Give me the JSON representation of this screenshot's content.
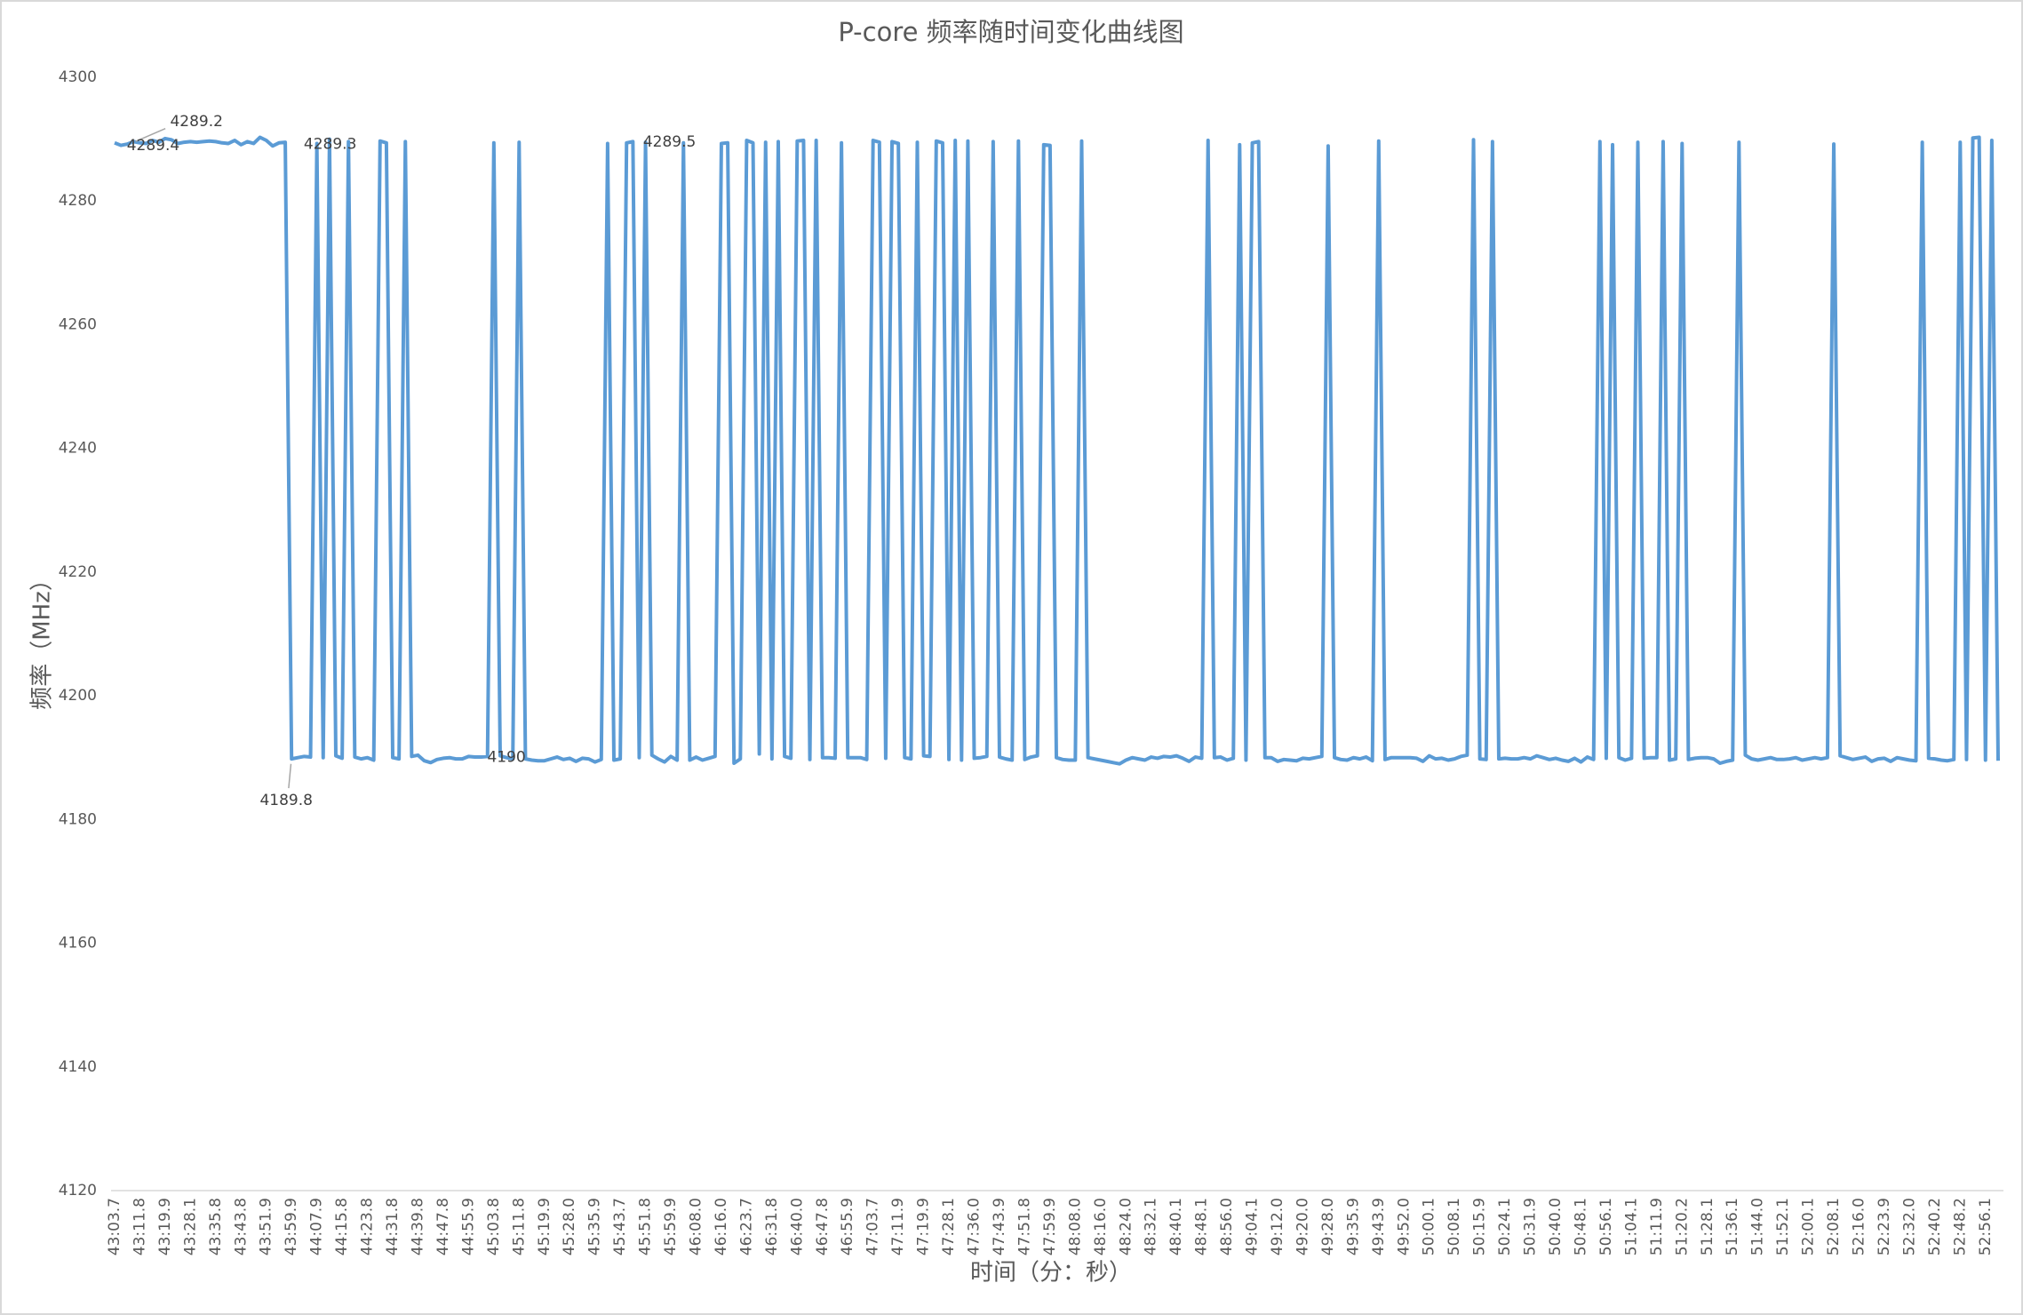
{
  "chart_data": {
    "type": "line",
    "title": "P-core 频率随时间变化曲线图",
    "x_label": "时间（分：秒）",
    "y_label": "频率（MHz）",
    "categories": [
      "43:03.7",
      null,
      null,
      null,
      "43:11.8",
      null,
      null,
      null,
      "43:19.9",
      null,
      null,
      null,
      "43:28.1",
      null,
      null,
      null,
      "43:35.8",
      null,
      null,
      null,
      "43:43.8",
      null,
      null,
      null,
      "43:51.9",
      null,
      null,
      null,
      "43:59.9",
      null,
      null,
      null,
      "44:07.9",
      null,
      null,
      null,
      "44:15.8",
      null,
      null,
      null,
      "44:23.8",
      null,
      null,
      null,
      "44:31.8",
      null,
      null,
      null,
      "44:39.8",
      null,
      null,
      null,
      "44:47.8",
      null,
      null,
      null,
      "44:55.9",
      null,
      null,
      null,
      "45:03.8",
      null,
      null,
      null,
      "45:11.8",
      null,
      null,
      null,
      "45:19.9",
      null,
      null,
      null,
      "45:28.0",
      null,
      null,
      null,
      "45:35.9",
      null,
      null,
      null,
      "45:43.7",
      null,
      null,
      null,
      "45:51.8",
      null,
      null,
      null,
      "45:59.9",
      null,
      null,
      null,
      "46:08.0",
      null,
      null,
      null,
      "46:16.0",
      null,
      null,
      null,
      "46:23.7",
      null,
      null,
      null,
      "46:31.8",
      null,
      null,
      null,
      "46:40.0",
      null,
      null,
      null,
      "46:47.8",
      null,
      null,
      null,
      "46:55.9",
      null,
      null,
      null,
      "47:03.7",
      null,
      null,
      null,
      "47:11.9",
      null,
      null,
      null,
      "47:19.9",
      null,
      null,
      null,
      "47:28.1",
      null,
      null,
      null,
      "47:36.0",
      null,
      null,
      null,
      "47:43.9",
      null,
      null,
      null,
      "47:51.8",
      null,
      null,
      null,
      "47:59.9",
      null,
      null,
      null,
      "48:08.0",
      null,
      null,
      null,
      "48:16.0",
      null,
      null,
      null,
      "48:24.0",
      null,
      null,
      null,
      "48:32.1",
      null,
      null,
      null,
      "48:40.1",
      null,
      null,
      null,
      "48:48.1",
      null,
      null,
      null,
      "48:56.0",
      null,
      null,
      null,
      "49:04.1",
      null,
      null,
      null,
      "49:12.0",
      null,
      null,
      null,
      "49:20.0",
      null,
      null,
      null,
      "49:28.0",
      null,
      null,
      null,
      "49:35.9",
      null,
      null,
      null,
      "49:43.9",
      null,
      null,
      null,
      "49:52.0",
      null,
      null,
      null,
      "50:00.1",
      null,
      null,
      null,
      "50:08.1",
      null,
      null,
      null,
      "50:15.9",
      null,
      null,
      null,
      "50:24.1",
      null,
      null,
      null,
      "50:31.9",
      null,
      null,
      null,
      "50:40.0",
      null,
      null,
      null,
      "50:48.1",
      null,
      null,
      null,
      "50:56.1",
      null,
      null,
      null,
      "51:04.1",
      null,
      null,
      null,
      "51:11.9",
      null,
      null,
      null,
      "51:20.2",
      null,
      null,
      null,
      "51:28.1",
      null,
      null,
      null,
      "51:36.1",
      null,
      null,
      null,
      "51:44.0",
      null,
      null,
      null,
      "51:52.1",
      null,
      null,
      null,
      "52:00.1",
      null,
      null,
      null,
      "52:08.1",
      null,
      null,
      null,
      "52:16.0",
      null,
      null,
      null,
      "52:23.9",
      null,
      null,
      null,
      "52:32.0",
      null,
      null,
      null,
      "52:40.2",
      null,
      null,
      null,
      "52:48.2",
      null,
      null,
      null,
      "52:56.1",
      null,
      null
    ],
    "series": [
      {
        "color": "#5b9bd5",
        "values": [
          4289.4,
          4289.0,
          4289.2,
          4289.6,
          4289.4,
          4289.3,
          4289.8,
          4289.5,
          4290.1,
          4289.9,
          4289.3,
          4289.5,
          4289.6,
          4289.5,
          4289.6,
          4289.7,
          4289.6,
          4289.4,
          4289.3,
          4289.8,
          4289.1,
          4289.6,
          4289.3,
          4290.3,
          4289.8,
          4288.9,
          4289.4,
          4289.5,
          4189.8,
          4190.0,
          4190.2,
          4190.1,
          4289.3,
          4190.0,
          4290.0,
          4190.3,
          4189.9,
          4289.6,
          4190.1,
          4189.8,
          4190.0,
          4189.6,
          4289.7,
          4289.4,
          4190.0,
          4189.8,
          4289.6,
          4190.2,
          4190.4,
          4189.5,
          4189.2,
          4189.7,
          4189.9,
          4190.0,
          4189.8,
          4189.8,
          4190.2,
          4190.1,
          4190.1,
          4190.2,
          4289.4,
          4190.3,
          4190.0,
          4189.8,
          4289.5,
          4189.8,
          4189.6,
          4189.5,
          4189.5,
          4189.8,
          4190.1,
          4189.7,
          4189.9,
          4189.4,
          4189.9,
          4189.8,
          4189.3,
          4189.7,
          4289.3,
          4189.6,
          4189.8,
          4289.4,
          4289.6,
          4190.0,
          4289.5,
          4190.4,
          4189.8,
          4189.3,
          4190.2,
          4189.6,
          4289.4,
          4189.6,
          4190.1,
          4189.6,
          4189.9,
          4190.2,
          4289.3,
          4289.4,
          4189.1,
          4189.8,
          4289.8,
          4289.4,
          4190.6,
          4289.5,
          4189.8,
          4289.6,
          4190.2,
          4189.9,
          4289.7,
          4289.8,
          4189.7,
          4289.8,
          4190.0,
          4190.0,
          4189.9,
          4289.4,
          4190.0,
          4190.0,
          4190.0,
          4189.7,
          4289.8,
          4289.5,
          4189.9,
          4289.6,
          4289.3,
          4190.0,
          4189.8,
          4289.5,
          4190.3,
          4190.2,
          4289.7,
          4289.4,
          4189.7,
          4289.8,
          4189.6,
          4289.7,
          4189.9,
          4190.0,
          4190.2,
          4289.6,
          4190.1,
          4189.8,
          4189.6,
          4289.7,
          4189.7,
          4190.1,
          4190.3,
          4289.1,
          4289.0,
          4190.0,
          4189.7,
          4189.6,
          4189.6,
          4289.7,
          4190.0,
          4189.8,
          4189.6,
          4189.4,
          4189.2,
          4189.0,
          4189.6,
          4190.0,
          4189.8,
          4189.6,
          4190.1,
          4189.9,
          4190.2,
          4190.1,
          4190.3,
          4189.9,
          4189.4,
          4190.1,
          4189.9,
          4289.8,
          4190.0,
          4190.1,
          4189.6,
          4189.9,
          4289.1,
          4189.6,
          4289.4,
          4289.6,
          4190.0,
          4190.0,
          4189.4,
          4189.7,
          4189.6,
          4189.5,
          4189.9,
          4189.8,
          4190.0,
          4190.2,
          4288.9,
          4190.0,
          4189.7,
          4189.6,
          4190.0,
          4189.8,
          4190.1,
          4189.5,
          4289.7,
          4189.7,
          4190.0,
          4190.0,
          4190.0,
          4190.0,
          4189.9,
          4189.4,
          4190.3,
          4189.8,
          4189.9,
          4189.6,
          4189.8,
          4190.2,
          4190.4,
          4289.9,
          4189.8,
          4189.7,
          4289.6,
          4189.8,
          4189.9,
          4189.8,
          4189.8,
          4190.0,
          4189.8,
          4190.3,
          4190.0,
          4189.7,
          4189.9,
          4189.6,
          4189.4,
          4189.9,
          4189.3,
          4190.1,
          4189.7,
          4289.6,
          4189.9,
          4289.1,
          4190.0,
          4189.6,
          4189.9,
          4289.5,
          4189.9,
          4190.0,
          4190.0,
          4289.6,
          4189.6,
          4189.8,
          4289.3,
          4189.7,
          4189.9,
          4190.0,
          4190.0,
          4189.8,
          4189.1,
          4189.4,
          4189.6,
          4289.5,
          4190.4,
          4189.8,
          4189.6,
          4189.8,
          4190.0,
          4189.7,
          4189.7,
          4189.8,
          4190.0,
          4189.6,
          4189.8,
          4190.0,
          4189.8,
          4190.0,
          4289.2,
          4190.3,
          4190.0,
          4189.7,
          4189.9,
          4190.1,
          4189.4,
          4189.8,
          4189.9,
          4189.4,
          4190.0,
          4189.8,
          4189.6,
          4189.5,
          4289.5,
          4189.9,
          4189.8,
          4189.6,
          4189.5,
          4189.7,
          4289.5,
          4189.7,
          4290.2,
          4290.3,
          4189.6,
          4289.8,
          4189.5
        ],
        "value_labels": [
          null,
          null,
          "4289.2",
          null,
          "4289.4",
          null,
          null,
          null,
          null,
          null,
          null,
          null,
          null,
          null,
          null,
          null,
          null,
          null,
          null,
          null,
          null,
          null,
          null,
          null,
          null,
          null,
          null,
          null,
          "4189.8",
          null,
          null,
          null,
          "4289.3",
          null,
          null,
          null,
          null,
          null,
          null,
          null,
          null,
          null,
          null,
          null,
          null,
          null,
          null,
          null,
          null,
          null,
          null,
          null,
          null,
          null,
          null,
          null,
          null,
          null,
          null,
          null,
          null,
          null,
          "4190",
          null,
          null,
          null,
          null,
          null,
          null,
          null,
          null,
          null,
          null,
          null,
          null,
          null,
          null,
          null,
          null,
          null,
          null,
          null,
          null,
          null,
          "4289.5",
          null,
          null,
          null,
          null,
          null,
          null,
          null,
          null,
          null,
          null,
          null,
          null,
          null,
          null,
          null,
          null,
          null,
          null,
          null,
          null,
          null,
          null,
          null,
          null,
          null,
          null,
          null,
          null,
          null,
          null,
          null,
          null,
          null,
          null,
          null,
          null,
          null,
          null,
          null,
          null,
          null,
          null,
          null,
          null,
          null,
          null,
          null,
          null,
          null,
          null,
          null,
          null,
          null,
          null,
          null,
          null,
          null,
          null,
          null,
          null,
          null,
          null,
          null,
          null,
          null,
          null,
          null,
          null,
          null,
          null,
          null,
          null,
          null,
          null,
          null,
          null,
          null,
          null,
          null,
          null,
          null,
          null,
          null,
          null,
          null,
          null,
          null,
          null,
          null,
          null,
          null,
          null,
          null,
          null,
          null,
          null,
          null,
          null,
          null,
          null,
          null,
          null,
          null,
          null,
          null,
          null,
          null,
          null,
          null,
          null,
          null,
          null,
          null,
          null,
          null,
          null,
          null,
          null,
          null,
          null,
          null,
          null,
          null,
          null,
          null,
          null,
          null,
          null,
          null,
          null,
          null,
          null,
          null,
          null,
          null,
          null,
          null,
          null,
          null,
          null,
          null,
          null,
          null,
          null,
          null,
          null,
          null,
          null,
          null,
          null,
          null,
          null,
          null,
          null,
          null,
          null,
          null,
          null,
          null,
          null,
          null,
          null,
          null,
          null,
          null,
          null,
          null,
          null,
          null,
          null,
          null,
          null,
          null,
          null,
          null,
          null,
          null,
          null,
          null,
          null,
          null,
          null,
          null,
          null,
          null,
          null,
          null,
          null,
          null,
          null,
          null,
          null,
          null,
          null,
          null,
          null,
          null,
          null,
          null,
          null,
          null,
          null,
          null,
          null,
          null,
          null,
          null,
          null,
          null,
          null,
          null,
          null,
          null,
          null
        ]
      }
    ],
    "ylim": [
      4120,
      4300
    ],
    "yticks": [
      4120,
      4140,
      4160,
      4180,
      4200,
      4220,
      4240,
      4260,
      4280,
      4300
    ],
    "grid": false
  }
}
